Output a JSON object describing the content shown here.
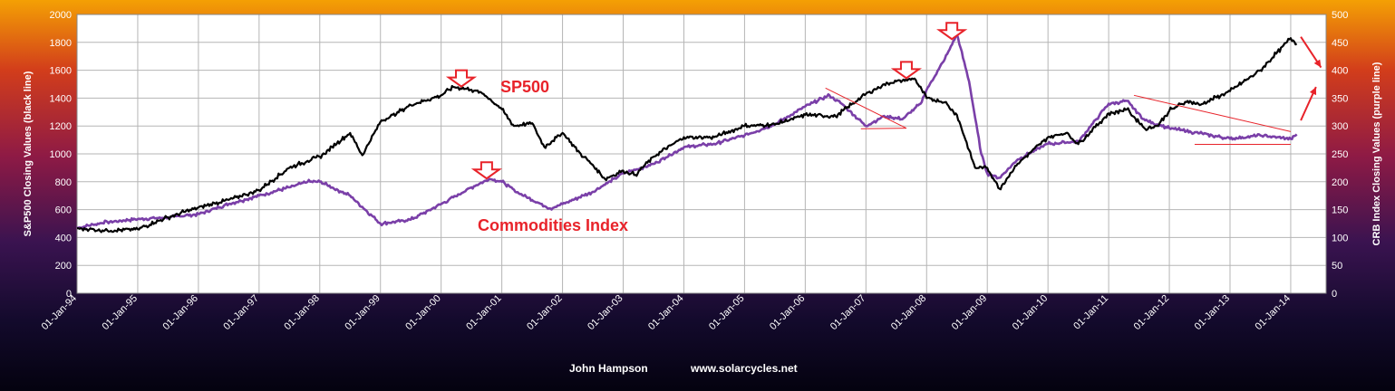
{
  "chart_data": {
    "type": "line",
    "xlabel": "",
    "x_range": [
      "1994-01-01",
      "2014-08-01"
    ],
    "x_tick_labels": [
      "01-Jan-94",
      "01-Jan-95",
      "01-Jan-96",
      "01-Jan-97",
      "01-Jan-98",
      "01-Jan-99",
      "01-Jan-00",
      "01-Jan-01",
      "01-Jan-02",
      "01-Jan-03",
      "01-Jan-04",
      "01-Jan-05",
      "01-Jan-06",
      "01-Jan-07",
      "01-Jan-08",
      "01-Jan-09",
      "01-Jan-10",
      "01-Jan-11",
      "01-Jan-12",
      "01-Jan-13",
      "01-Jan-14"
    ],
    "y_left": {
      "label": "S&P500 Closing Values (black line)",
      "lim": [
        0,
        2000
      ],
      "ticks": [
        "0",
        "200",
        "400",
        "600",
        "800",
        "1000",
        "1200",
        "1400",
        "1600",
        "1800",
        "2000"
      ]
    },
    "y_right": {
      "label": "CRB Index Closing Values (purple line)",
      "lim": [
        0,
        500
      ],
      "ticks": [
        "0",
        "50",
        "100",
        "150",
        "200",
        "250",
        "300",
        "350",
        "400",
        "450",
        "500"
      ]
    },
    "grid": true,
    "series": [
      {
        "name": "SP500",
        "axis": "left",
        "color": "#000000",
        "x": [
          1994.0,
          1994.5,
          1995.0,
          1995.5,
          1996.0,
          1996.5,
          1997.0,
          1997.5,
          1997.8,
          1998.0,
          1998.5,
          1998.7,
          1999.0,
          1999.5,
          2000.0,
          2000.2,
          2000.5,
          2000.7,
          2001.0,
          2001.2,
          2001.5,
          2001.7,
          2002.0,
          2002.3,
          2002.5,
          2002.7,
          2003.0,
          2003.2,
          2003.5,
          2004.0,
          2004.5,
          2005.0,
          2005.5,
          2006.0,
          2006.5,
          2007.0,
          2007.3,
          2007.5,
          2007.8,
          2008.0,
          2008.3,
          2008.5,
          2008.8,
          2009.0,
          2009.2,
          2009.5,
          2010.0,
          2010.3,
          2010.5,
          2011.0,
          2011.3,
          2011.6,
          2011.8,
          2012.0,
          2012.3,
          2012.5,
          2013.0,
          2013.5,
          2014.0,
          2014.1
        ],
        "y": [
          466,
          450,
          460,
          545,
          615,
          670,
          740,
          900,
          950,
          980,
          1150,
          990,
          1230,
          1350,
          1420,
          1480,
          1460,
          1430,
          1320,
          1200,
          1220,
          1050,
          1150,
          1000,
          920,
          820,
          880,
          850,
          980,
          1120,
          1120,
          1200,
          1210,
          1280,
          1270,
          1430,
          1500,
          1520,
          1540,
          1400,
          1370,
          1280,
          900,
          900,
          750,
          930,
          1120,
          1150,
          1070,
          1290,
          1320,
          1180,
          1200,
          1310,
          1380,
          1350,
          1450,
          1600,
          1830,
          1790
        ]
      },
      {
        "name": "Commodities Index",
        "axis": "right",
        "color": "#7a3fa8",
        "x": [
          1994.0,
          1994.5,
          1995.0,
          1995.5,
          1996.0,
          1996.5,
          1997.0,
          1997.5,
          1997.8,
          1998.0,
          1998.5,
          1999.0,
          1999.5,
          2000.0,
          2000.5,
          2000.8,
          2001.0,
          2001.3,
          2001.8,
          2002.0,
          2002.5,
          2003.0,
          2003.5,
          2004.0,
          2004.5,
          2005.0,
          2005.5,
          2006.0,
          2006.4,
          2006.6,
          2007.0,
          2007.3,
          2007.6,
          2007.9,
          2008.0,
          2008.3,
          2008.5,
          2008.7,
          2008.9,
          2009.0,
          2009.2,
          2009.5,
          2010.0,
          2010.5,
          2011.0,
          2011.3,
          2011.6,
          2012.0,
          2012.5,
          2013.0,
          2013.5,
          2014.0,
          2014.1
        ],
        "y": [
          117,
          128,
          133,
          136,
          142,
          160,
          175,
          190,
          200,
          200,
          175,
          125,
          132,
          160,
          190,
          205,
          200,
          178,
          152,
          160,
          182,
          215,
          232,
          262,
          268,
          283,
          303,
          335,
          355,
          340,
          300,
          318,
          312,
          340,
          365,
          420,
          465,
          380,
          250,
          215,
          207,
          240,
          268,
          272,
          340,
          345,
          310,
          296,
          287,
          277,
          283,
          277,
          285
        ]
      }
    ],
    "annotations": [
      {
        "text": "SP500",
        "color": "#e8232a"
      },
      {
        "text": "Commodities Index",
        "color": "#e8232a"
      }
    ],
    "markers": [
      {
        "type": "down-arrow",
        "at_date": "2000-05",
        "at_value": 1600,
        "axis": "left"
      },
      {
        "type": "down-arrow",
        "at_date": "2000-10",
        "at_value": 940,
        "axis": "left"
      },
      {
        "type": "down-arrow",
        "at_date": "2007-09",
        "at_value": 1660,
        "axis": "left"
      },
      {
        "type": "down-arrow",
        "at_date": "2008-06",
        "at_value": 1940,
        "axis": "left"
      }
    ],
    "trendlines": [
      {
        "color": "#e8232a",
        "axis": "right",
        "from": [
          "2006-05",
          368
        ],
        "to": [
          "2007-09",
          296
        ]
      },
      {
        "color": "#e8232a",
        "axis": "right",
        "from": [
          "2006-12",
          295
        ],
        "to": [
          "2007-09",
          296
        ]
      },
      {
        "color": "#e8232a",
        "axis": "right",
        "from": [
          "2011-06",
          355
        ],
        "to": [
          "2014-01",
          290
        ]
      },
      {
        "color": "#e8232a",
        "axis": "right",
        "from": [
          "2012-06",
          267
        ],
        "to": [
          "2014-01",
          267
        ]
      }
    ],
    "forecast_arrows": [
      {
        "color": "#e8232a",
        "axis": "left",
        "from": [
          "2014-03",
          1840
        ],
        "to": [
          "2014-07",
          1620
        ]
      },
      {
        "color": "#e8232a",
        "axis": "right",
        "from": [
          "2014-03",
          310
        ],
        "to": [
          "2014-06",
          370
        ]
      }
    ]
  },
  "credit": {
    "author": "John Hampson",
    "site": "www.solarcycles.net"
  }
}
